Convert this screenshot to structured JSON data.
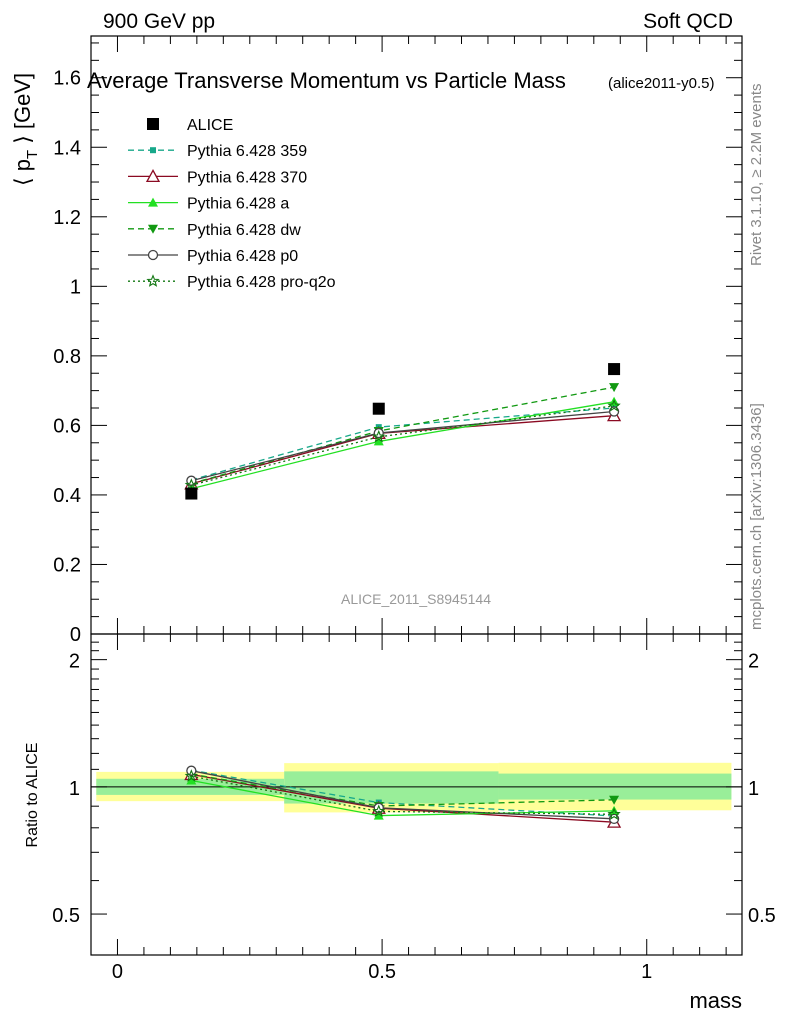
{
  "header": {
    "left": "900 GeV pp",
    "right": "Soft QCD",
    "title": "Average Transverse Momentum vs Particle Mass",
    "tag": "(alice2011-y0.5)",
    "side_rivet": "Rivet 3.1.10, ≥ 2.2M events",
    "side_mcplots": "mcplots.cern.ch [arXiv:1306.3436]",
    "watermark": "ALICE_2011_S8945144"
  },
  "chart_data": [
    {
      "type": "scatter",
      "panel": "main",
      "ylabel_main": "⟨ p",
      "ylabel_sub": "T",
      "ylabel_tail": " ⟩ [GeV]",
      "xlim": [
        -0.05,
        1.18
      ],
      "ylim": [
        0,
        1.72
      ],
      "y_ticks": [
        "0",
        "0.2",
        "0.4",
        "0.6",
        "0.8",
        "1",
        "1.2",
        "1.4",
        "1.6"
      ],
      "y_tick_values": [
        0,
        0.2,
        0.4,
        0.6,
        0.8,
        1.0,
        1.2,
        1.4,
        1.6
      ],
      "x": [
        0.1396,
        0.4937,
        0.9383
      ],
      "series": [
        {
          "name": "ALICE",
          "color": "#000000",
          "marker": "square",
          "line": "none",
          "values": [
            0.404,
            0.648,
            0.762
          ]
        },
        {
          "name": "Pythia 6.428 359",
          "color": "#17a88a",
          "marker": "small-square",
          "line": "dashed",
          "values": [
            0.443,
            0.595,
            0.65
          ]
        },
        {
          "name": "Pythia 6.428 370",
          "color": "#8b0a22",
          "marker": "open-triangle",
          "line": "solid",
          "values": [
            0.432,
            0.577,
            0.628
          ]
        },
        {
          "name": "Pythia 6.428 a",
          "color": "#22e022",
          "marker": "triangle",
          "line": "solid",
          "values": [
            0.418,
            0.554,
            0.668
          ]
        },
        {
          "name": "Pythia 6.428 dw",
          "color": "#119911",
          "marker": "triangle-down",
          "line": "dashed",
          "values": [
            0.433,
            0.584,
            0.71
          ]
        },
        {
          "name": "Pythia 6.428 p0",
          "color": "#444444",
          "marker": "open-circle",
          "line": "solid",
          "values": [
            0.441,
            0.578,
            0.64
          ]
        },
        {
          "name": "Pythia 6.428 pro-q2o",
          "color": "#117711",
          "marker": "star",
          "line": "dotted",
          "values": [
            0.428,
            0.567,
            0.656
          ]
        }
      ]
    },
    {
      "type": "scatter",
      "panel": "ratio",
      "ylabel": "Ratio to ALICE",
      "xlabel": "mass",
      "xlim": [
        -0.05,
        1.18
      ],
      "ylim": [
        0.4,
        2.3
      ],
      "log_y": true,
      "y_ticks": [
        "0.5",
        "1",
        "2"
      ],
      "y_tick_values": [
        0.5,
        1.0,
        2.0
      ],
      "x_ticks": [
        "0",
        "0.5",
        "1"
      ],
      "x_tick_values": [
        0,
        0.5,
        1.0
      ],
      "bands": [
        {
          "x": [
            -0.04,
            0.315
          ],
          "inner": [
            0.957,
            1.045
          ],
          "outer": [
            0.925,
            1.085
          ]
        },
        {
          "x": [
            0.315,
            0.72
          ],
          "inner": [
            0.913,
            1.088
          ],
          "outer": [
            0.87,
            1.138
          ]
        },
        {
          "x": [
            0.72,
            1.16
          ],
          "inner": [
            0.933,
            1.075
          ],
          "outer": [
            0.88,
            1.14
          ]
        }
      ],
      "band_colors": {
        "inner": "#99ee99",
        "outer": "#ffff99"
      },
      "x": [
        0.1396,
        0.4937,
        0.9383
      ],
      "series": [
        {
          "name": "Pythia 6.428 359",
          "values": [
            1.095,
            0.918,
            0.853
          ]
        },
        {
          "name": "Pythia 6.428 370",
          "values": [
            1.07,
            0.89,
            0.825
          ]
        },
        {
          "name": "Pythia 6.428 a",
          "values": [
            1.035,
            0.855,
            0.877
          ]
        },
        {
          "name": "Pythia 6.428 dw",
          "values": [
            1.072,
            0.901,
            0.932
          ]
        },
        {
          "name": "Pythia 6.428 p0",
          "values": [
            1.092,
            0.892,
            0.84
          ]
        },
        {
          "name": "Pythia 6.428 pro-q2o",
          "values": [
            1.06,
            0.875,
            0.861
          ]
        }
      ]
    }
  ]
}
